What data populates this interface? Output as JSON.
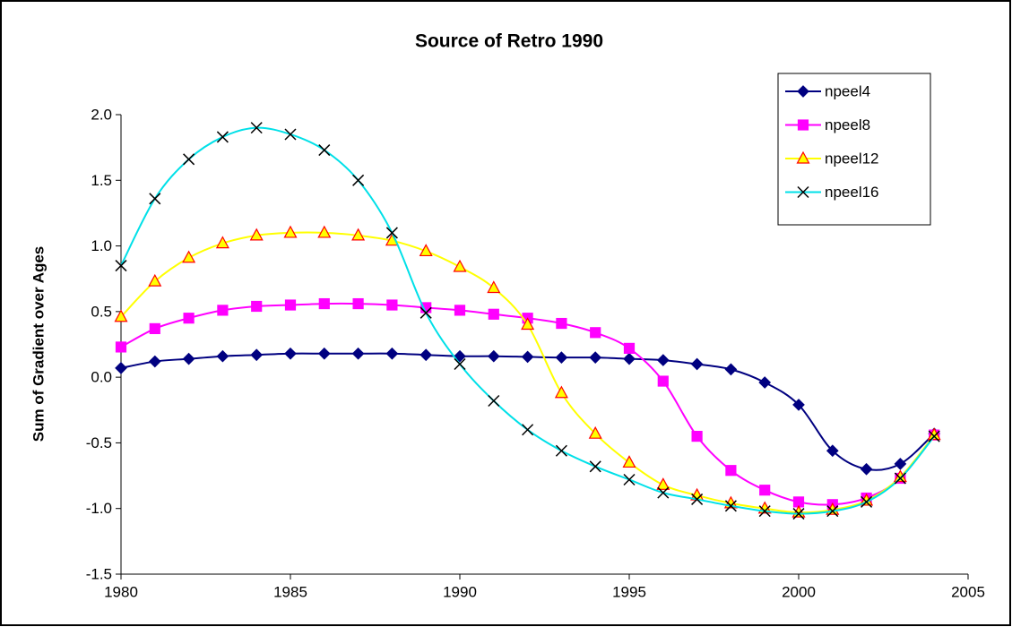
{
  "chart_data": {
    "type": "line",
    "title": "Source of Retro 1990",
    "y_label": "Sum of Gradient over Ages",
    "x": [
      1980,
      1981,
      1982,
      1983,
      1984,
      1985,
      1986,
      1987,
      1988,
      1989,
      1990,
      1991,
      1992,
      1993,
      1994,
      1995,
      1996,
      1997,
      1998,
      1999,
      2000,
      2001,
      2002,
      2003,
      2004
    ],
    "xlim": [
      1980,
      2005
    ],
    "xticks": [
      1980,
      1985,
      1990,
      1995,
      2000,
      2005
    ],
    "ylim": [
      -1.5,
      2.0
    ],
    "yticks": [
      -1.5,
      {
        "value": -1,
        "label": "-1.0"
      },
      -0.5,
      {
        "value": 0,
        "label": "0.0"
      },
      0.5,
      {
        "value": 1,
        "label": "1.0"
      },
      1.5,
      {
        "value": 2,
        "label": "2.0"
      }
    ],
    "grid": false,
    "smooth": true,
    "legend": "upper right",
    "series": [
      {
        "name": "npeel4",
        "color": "#000080",
        "marker": "diamond",
        "marker_face": "#000080",
        "marker_edge": "#000080",
        "values": [
          0.07,
          0.12,
          0.14,
          0.16,
          0.17,
          0.18,
          0.18,
          0.18,
          0.18,
          0.17,
          0.16,
          0.16,
          0.155,
          0.15,
          0.15,
          0.14,
          0.13,
          0.1,
          0.06,
          -0.04,
          -0.21,
          -0.56,
          -0.7,
          -0.66,
          -0.43
        ]
      },
      {
        "name": "npeel8",
        "color": "#ff00ff",
        "marker": "square",
        "marker_face": "#ff00ff",
        "marker_edge": "#ff00ff",
        "values": [
          0.23,
          0.37,
          0.45,
          0.51,
          0.54,
          0.55,
          0.56,
          0.56,
          0.55,
          0.53,
          0.51,
          0.48,
          0.45,
          0.41,
          0.34,
          0.22,
          -0.03,
          -0.45,
          -0.71,
          -0.86,
          -0.95,
          -0.97,
          -0.92,
          -0.77,
          -0.44
        ]
      },
      {
        "name": "npeel12",
        "color": "#ffff00",
        "marker": "triangle",
        "marker_face": "#ffff00",
        "marker_edge": "#ff0000",
        "values": [
          0.46,
          0.73,
          0.91,
          1.02,
          1.08,
          1.1,
          1.1,
          1.08,
          1.04,
          0.96,
          0.84,
          0.68,
          0.4,
          -0.12,
          -0.43,
          -0.65,
          -0.82,
          -0.9,
          -0.96,
          -1.0,
          -1.03,
          -1.01,
          -0.94,
          -0.76,
          -0.44
        ]
      },
      {
        "name": "npeel16",
        "color": "#00e0e8",
        "marker": "x",
        "marker_face": "none",
        "marker_edge": "#000000",
        "values": [
          0.85,
          1.36,
          1.66,
          1.83,
          1.9,
          1.85,
          1.73,
          1.5,
          1.1,
          0.49,
          0.1,
          -0.18,
          -0.4,
          -0.56,
          -0.68,
          -0.78,
          -0.88,
          -0.93,
          -0.98,
          -1.02,
          -1.04,
          -1.02,
          -0.95,
          -0.77,
          -0.45
        ]
      }
    ]
  }
}
